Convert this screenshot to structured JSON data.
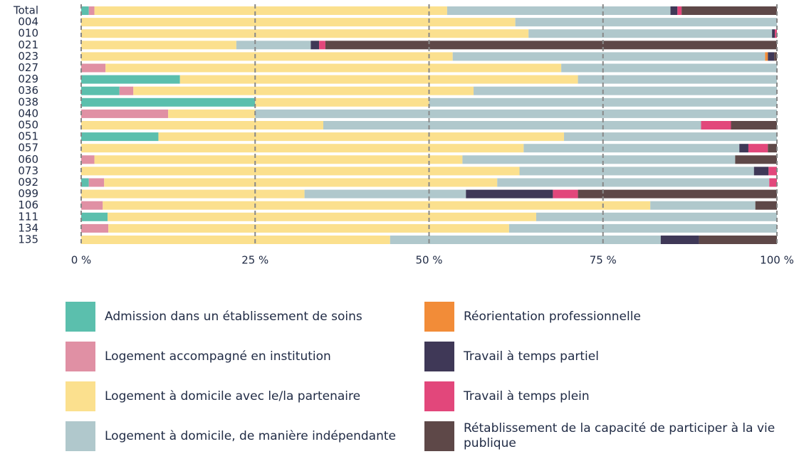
{
  "chart_data": {
    "type": "stacked-barh",
    "categories": [
      "Total",
      "004",
      "010",
      "021",
      "023",
      "027",
      "029",
      "036",
      "038",
      "040",
      "050",
      "051",
      "057",
      "060",
      "073",
      "092",
      "099",
      "106",
      "111",
      "134",
      "135"
    ],
    "series": [
      {
        "name": "Admission dans un établissement de soins",
        "color": "#5bbfad",
        "values": [
          1.1,
          0,
          0,
          0,
          0,
          0,
          14.2,
          5.5,
          25,
          0,
          0,
          11.1,
          0,
          0,
          0,
          1.1,
          0,
          0,
          3.8,
          0,
          0
        ]
      },
      {
        "name": "Logement accompagné en institution",
        "color": "#e090a4",
        "values": [
          0.8,
          0,
          0,
          0,
          0,
          3.5,
          0,
          2.0,
          0,
          12.5,
          0,
          0,
          0,
          1.9,
          0,
          2.2,
          0,
          3.1,
          0,
          3.9,
          0
        ]
      },
      {
        "name": "Logement à domicile avec le/la partenaire",
        "color": "#fbe08e",
        "values": [
          50.7,
          62.4,
          64.3,
          22.3,
          53.4,
          65.5,
          57.2,
          48.9,
          25,
          12.5,
          34.8,
          58.3,
          63.6,
          52.9,
          63.0,
          56.5,
          32.1,
          78.7,
          61.6,
          57.6,
          44.4
        ]
      },
      {
        "name": "Logement à domicile, de manière indépendante",
        "color": "#b0c8cc",
        "values": [
          32.1,
          37.6,
          35.0,
          10.7,
          44.9,
          31.0,
          28.6,
          43.6,
          50,
          75,
          54.3,
          30.6,
          31.0,
          39.2,
          33.7,
          39.1,
          23.2,
          15.1,
          34.6,
          38.5,
          38.9
        ]
      },
      {
        "name": "Réorientation professionnelle",
        "color": "#f28c38",
        "values": [
          0,
          0,
          0,
          0,
          0.4,
          0,
          0,
          0,
          0,
          0,
          0,
          0,
          0,
          0,
          0,
          0,
          0,
          0,
          0,
          0,
          0
        ]
      },
      {
        "name": "Travail à temps partiel",
        "color": "#3f3857",
        "values": [
          1.0,
          0,
          0.4,
          1.2,
          0.9,
          0,
          0,
          0,
          0,
          0,
          0,
          0,
          1.3,
          0,
          2.1,
          0,
          12.5,
          0,
          0,
          0,
          5.5
        ]
      },
      {
        "name": "Travail à temps plein",
        "color": "#e2477b",
        "values": [
          0.6,
          0,
          0.3,
          0.9,
          0,
          0,
          0,
          0,
          0,
          0,
          4.3,
          0,
          2.8,
          0,
          1.2,
          1.1,
          3.6,
          0,
          0,
          0,
          0
        ]
      },
      {
        "name": "Rétablissement de la capacité de participer à la vie publique",
        "color": "#5e4848",
        "values": [
          13.7,
          0,
          0,
          64.9,
          0.4,
          0,
          0,
          0,
          0,
          0,
          6.6,
          0,
          1.3,
          6.0,
          0,
          0,
          28.6,
          3.1,
          0,
          0,
          11.2
        ]
      }
    ],
    "xlim": [
      0,
      100
    ],
    "xticks": [
      {
        "value": 0,
        "label": "0 %"
      },
      {
        "value": 25,
        "label": "25 %"
      },
      {
        "value": 50,
        "label": "50 %"
      },
      {
        "value": 75,
        "label": "75 %"
      },
      {
        "value": 100,
        "label": "100 %"
      }
    ],
    "grid": true
  }
}
